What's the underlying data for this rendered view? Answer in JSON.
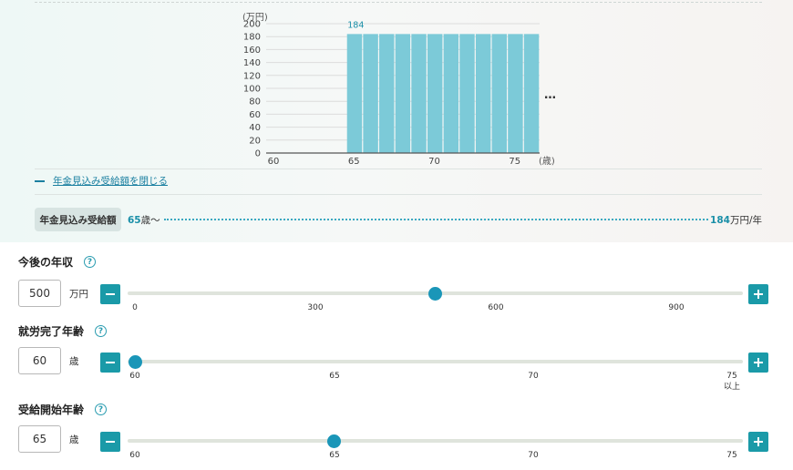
{
  "chart_data": {
    "type": "bar",
    "unit_label": "(万円)",
    "x_unit_label": "(歳)",
    "y_ticks": [
      0,
      20,
      40,
      60,
      80,
      100,
      120,
      140,
      160,
      180,
      200
    ],
    "ylim": [
      0,
      200
    ],
    "x_ticks": [
      60,
      65,
      70,
      75
    ],
    "x": [
      65,
      66,
      67,
      68,
      69,
      70,
      71,
      72,
      73,
      74,
      75,
      76
    ],
    "values": [
      184,
      184,
      184,
      184,
      184,
      184,
      184,
      184,
      184,
      184,
      184,
      184
    ],
    "value_label": "184",
    "ellipsis": "…",
    "bar_color": "#7ccad8"
  },
  "close_link": "年金見込み受給額を閉じる",
  "estimate": {
    "label": "年金見込み受給額",
    "start_num": "65",
    "start_suffix": "歳〜",
    "amount": "184",
    "amount_unit": "万円/年"
  },
  "income": {
    "label": "今後の年収",
    "value": "500",
    "unit": "万円",
    "ticks": [
      "0",
      "300",
      "600",
      "900"
    ],
    "slider_value": 500,
    "min": 0,
    "max": 1000
  },
  "retire_age": {
    "label": "就労完了年齢",
    "value": "60",
    "unit": "歳",
    "ticks": [
      "60",
      "65",
      "70",
      "75"
    ],
    "tick_extra": "以上",
    "slider_value": 60,
    "min": 60,
    "max": 75
  },
  "start_age": {
    "label": "受給開始年齢",
    "value": "65",
    "unit": "歳",
    "ticks": [
      "60",
      "65",
      "70",
      "75"
    ],
    "slider_value": 65,
    "min": 60,
    "max": 75
  },
  "icons": {
    "help": "help-icon",
    "minus": "minus-icon",
    "plus": "plus-icon"
  },
  "colors": {
    "accent": "#1a9aa8",
    "thumb": "#1a96b8",
    "link": "#1a7fa0"
  }
}
